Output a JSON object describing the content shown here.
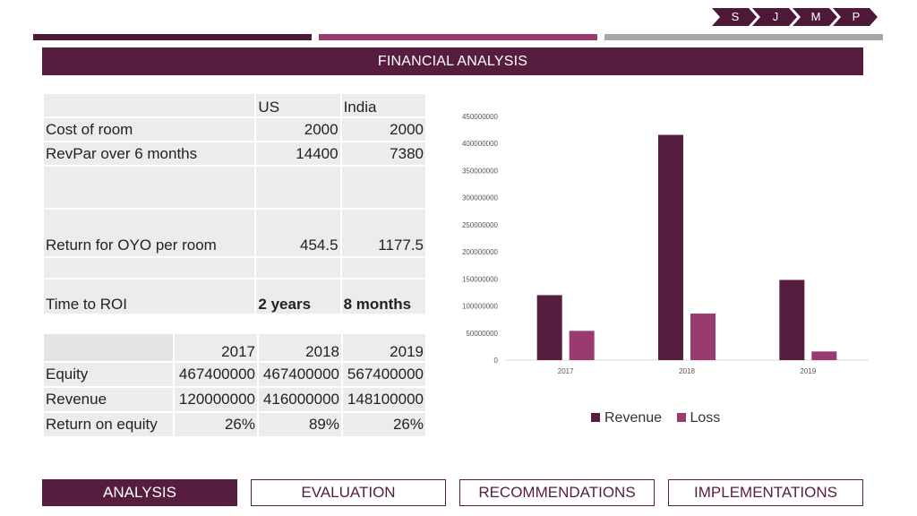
{
  "steps": [
    "S",
    "J",
    "M",
    "P"
  ],
  "title": "FINANCIAL ANALYSIS",
  "table1": {
    "headers": [
      "",
      "US",
      "India"
    ],
    "rows": [
      [
        "Cost of room",
        "2000",
        "2000"
      ],
      [
        "RevPar over 6 months",
        "14400",
        "7380"
      ],
      [
        "",
        "",
        ""
      ],
      [
        "Return for OYO per room",
        "454.5",
        "1177.5"
      ],
      [
        "",
        "",
        ""
      ],
      [
        "Time to ROI",
        "2 years",
        "8 months"
      ]
    ]
  },
  "table2": {
    "headers": [
      "",
      "2017",
      "2018",
      "2019"
    ],
    "rows": [
      [
        "Equity",
        "467400000",
        "467400000",
        "567400000"
      ],
      [
        "Revenue",
        "120000000",
        "416000000",
        "148100000"
      ],
      [
        "Return on equity",
        "26%",
        "89%",
        "26%"
      ]
    ]
  },
  "chart_data": {
    "type": "bar",
    "categories": [
      "2017",
      "2018",
      "2019"
    ],
    "series": [
      {
        "name": "Revenue",
        "color": "#561d3f",
        "values": [
          120000000,
          416000000,
          148100000
        ]
      },
      {
        "name": "Loss",
        "color": "#9a3b6f",
        "values": [
          54000000,
          86000000,
          16000000
        ]
      }
    ],
    "ylim": [
      0,
      450000000
    ],
    "yticks": [
      "0",
      "50000000",
      "100000000",
      "150000000",
      "200000000",
      "250000000",
      "300000000",
      "350000000",
      "400000000",
      "450000000"
    ],
    "legend": "bottom-right",
    "grid": false
  },
  "nav": [
    "ANALYSIS",
    "EVALUATION",
    "RECOMMENDATIONS",
    "IMPLEMENTATIONS"
  ],
  "colors": {
    "primary": "#561d3f",
    "secondary": "#9a3b6f",
    "gray": "#a6a6a9"
  }
}
